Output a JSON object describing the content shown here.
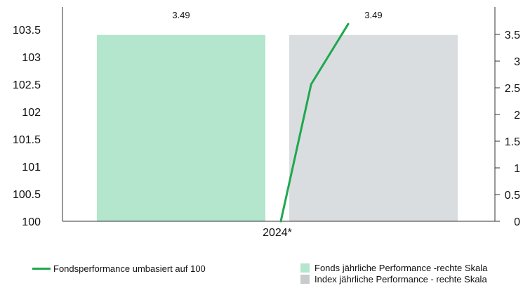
{
  "chart_data": {
    "type": "bar+line",
    "categories": [
      "2024*"
    ],
    "bars": [
      {
        "name": "Fonds jährliche Performance -rechte Skala",
        "value": 3.49,
        "label": "3.49",
        "color": "#b3e6cc"
      },
      {
        "name": "Index jährliche Performance - rechte Skala",
        "value": 3.49,
        "label": "3.49",
        "color": "#dadde0"
      }
    ],
    "line": {
      "name": "Fondsperformance umbasiert auf 100",
      "color": "#1fa84f",
      "points": [
        {
          "x": 0.0,
          "y": 100.0
        },
        {
          "x": 0.18,
          "y": 102.5
        },
        {
          "x": 0.4,
          "y": 103.6
        }
      ]
    },
    "left_axis": {
      "min": 100,
      "max": 103.5,
      "ticks": [
        "100",
        "100.5",
        "101",
        "101.5",
        "102",
        "102.5",
        "103",
        "103.5"
      ]
    },
    "right_axis": {
      "min": 0,
      "max": 3.5,
      "ticks": [
        "0",
        "0.5",
        "1",
        "1.5",
        "2",
        "2.5",
        "3",
        "3.5"
      ]
    },
    "x_tick": "2024*"
  },
  "legend": {
    "line_label": "Fondsperformance umbasiert auf 100",
    "bar1_label": "Fonds jährliche Performance -rechte Skala",
    "bar2_label": "Index jährliche Performance - rechte Skala"
  }
}
